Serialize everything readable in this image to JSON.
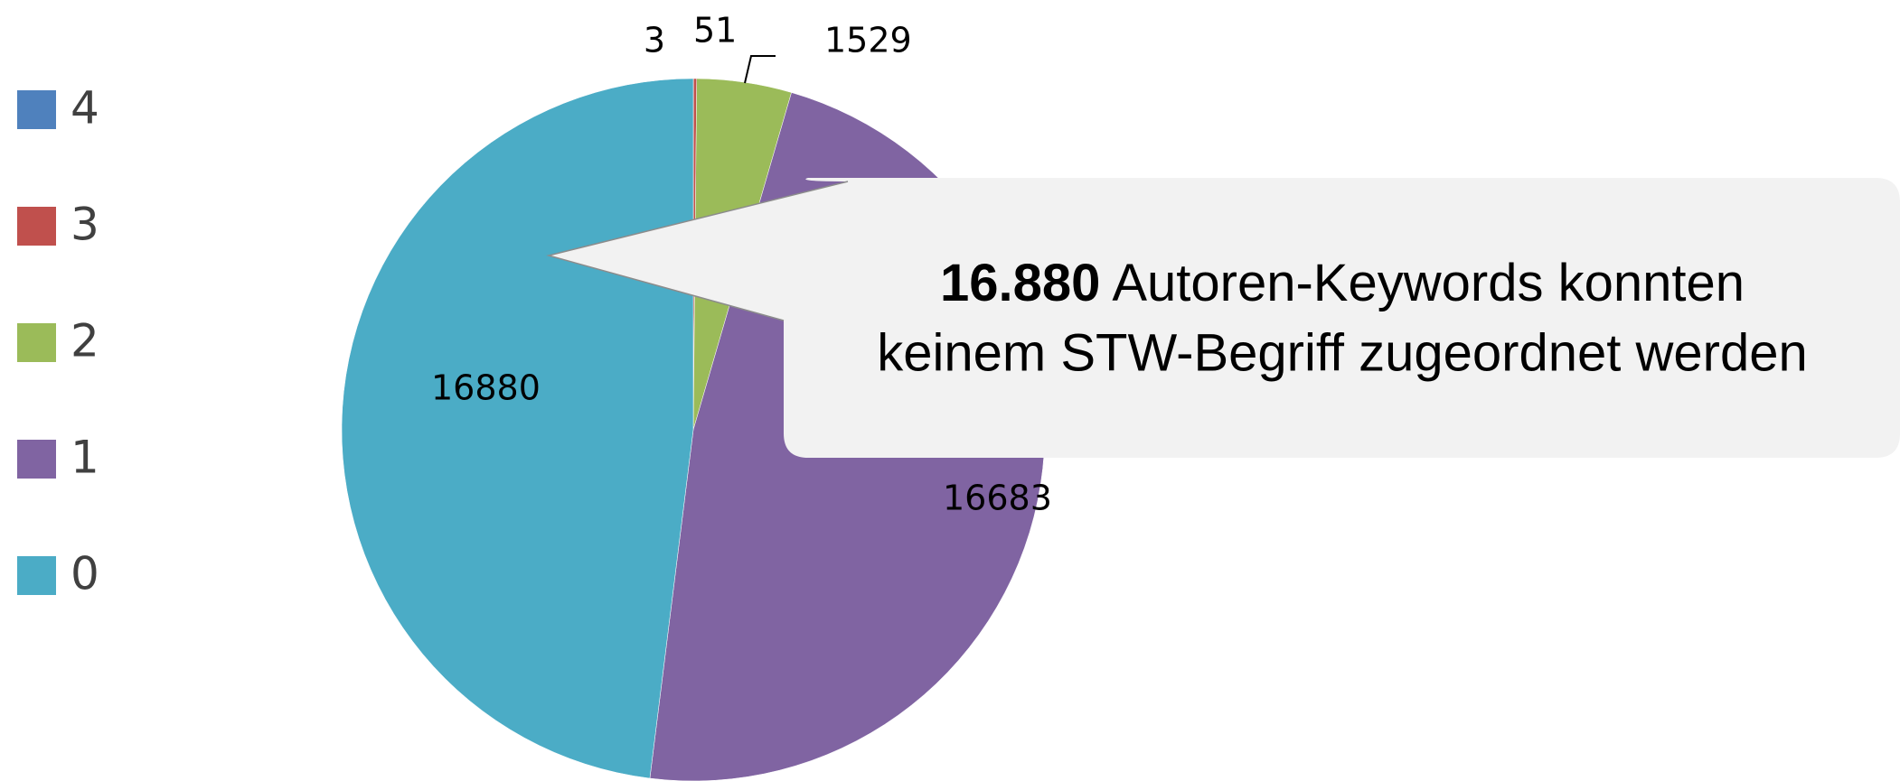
{
  "chart_data": {
    "type": "pie",
    "categories": [
      "4",
      "3",
      "2",
      "1",
      "0"
    ],
    "values": [
      3,
      51,
      1529,
      16683,
      16880
    ],
    "colors": [
      "#4f81bd",
      "#c0504d",
      "#9bbb59",
      "#8064a2",
      "#4bacc6"
    ],
    "legend": "left",
    "annotation": {
      "bold": "16.880",
      "lines": [
        "Autoren-Keywords konnten",
        "keinem STW-Begriff zugeordnet werden"
      ]
    }
  }
}
